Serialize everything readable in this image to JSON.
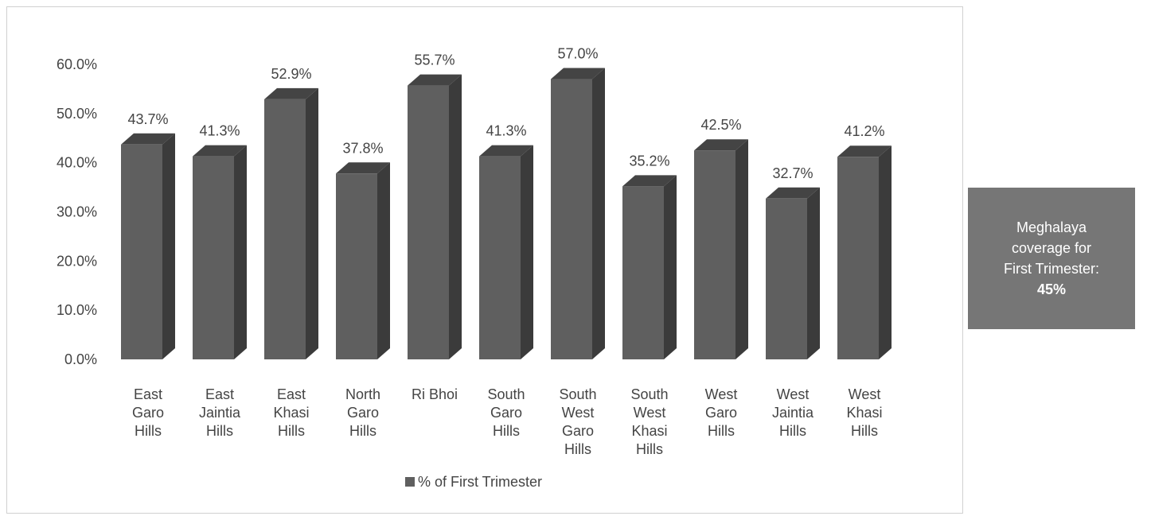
{
  "chart_data": {
    "type": "bar",
    "style": "3d-column",
    "categories": [
      [
        "East",
        "Garo",
        "Hills"
      ],
      [
        "East",
        "Jaintia",
        "Hills"
      ],
      [
        "East",
        "Khasi",
        "Hills"
      ],
      [
        "North",
        "Garo",
        "Hills"
      ],
      [
        "Ri Bhoi"
      ],
      [
        "South",
        "Garo",
        "Hills"
      ],
      [
        "South",
        "West",
        "Garo",
        "Hills"
      ],
      [
        "South",
        "West",
        "Khasi",
        "Hills"
      ],
      [
        "West",
        "Garo",
        "Hills"
      ],
      [
        "West",
        "Jaintia",
        "Hills"
      ],
      [
        "West",
        "Khasi",
        "Hills"
      ]
    ],
    "series": [
      {
        "name": "% of First Trimester",
        "color": "#5f5f5f",
        "values": [
          43.7,
          41.3,
          52.9,
          37.8,
          55.7,
          41.3,
          57.0,
          35.2,
          42.5,
          32.7,
          41.2
        ],
        "labels": [
          "43.7%",
          "41.3%",
          "52.9%",
          "37.8%",
          "55.7%",
          "41.3%",
          "57.0%",
          "35.2%",
          "42.5%",
          "32.7%",
          "41.2%"
        ]
      }
    ],
    "ylim": [
      0,
      60
    ],
    "yticks": [
      "0.0%",
      "10.0%",
      "20.0%",
      "30.0%",
      "40.0%",
      "50.0%",
      "60.0%"
    ],
    "grid": false,
    "legend": "bottom-center",
    "title": "",
    "xlabel": "",
    "ylabel": ""
  },
  "summary": {
    "line1": "Meghalaya",
    "line2": "coverage for",
    "line3": "First Trimester:",
    "value": "45%",
    "background": "#767676"
  }
}
